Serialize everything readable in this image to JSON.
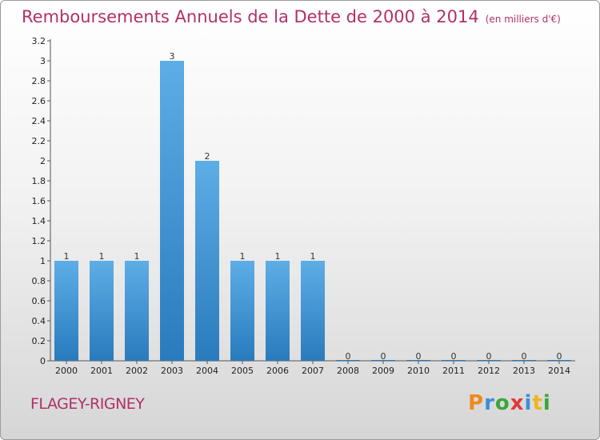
{
  "header": {
    "title": "Remboursements Annuels de la Dette de 2000 à 2014",
    "unit": "(en milliers d'€)"
  },
  "footer": {
    "commune": "FLAGEY-RIGNEY",
    "brand_letters": [
      "P",
      "r",
      "o",
      "x",
      "i",
      "t",
      "i"
    ],
    "brand_colors": [
      "#f08a1c",
      "#3a8fd8",
      "#3aa63a",
      "#e03a3a",
      "#3a8fd8",
      "#f0b41c",
      "#3aa63a"
    ]
  },
  "colors": {
    "accent": "#b0306a",
    "bar_top": "#5dade6",
    "bar_bottom": "#2a7bbd"
  },
  "chart_data": {
    "type": "bar",
    "title": "Remboursements Annuels de la Dette de 2000 à 2014",
    "subtitle": "(en milliers d'€)",
    "categories": [
      "2000",
      "2001",
      "2002",
      "2003",
      "2004",
      "2005",
      "2006",
      "2007",
      "2008",
      "2009",
      "2010",
      "2011",
      "2012",
      "2013",
      "2014"
    ],
    "values": [
      1,
      1,
      1,
      3,
      2,
      1,
      1,
      1,
      0,
      0,
      0,
      0,
      0,
      0,
      0
    ],
    "data_labels": [
      "1",
      "1",
      "1",
      "3",
      "2",
      "1",
      "1",
      "1",
      "0",
      "0",
      "0",
      "0",
      "0",
      "0",
      "0"
    ],
    "ylim": [
      0,
      3.2
    ],
    "yticks": [
      0,
      0.2,
      0.4,
      0.6,
      0.8,
      1,
      1.2,
      1.4,
      1.6,
      1.8,
      2,
      2.2,
      2.4,
      2.6,
      2.8,
      3,
      3.2
    ],
    "ytick_labels": [
      "0",
      "0.2",
      "0.4",
      "0.6",
      "0.8",
      "1",
      "1.2",
      "1.4",
      "1.6",
      "1.8",
      "2",
      "2.2",
      "2.4",
      "2.6",
      "2.8",
      "3",
      "3.2"
    ],
    "grid": false,
    "legend": "none"
  }
}
